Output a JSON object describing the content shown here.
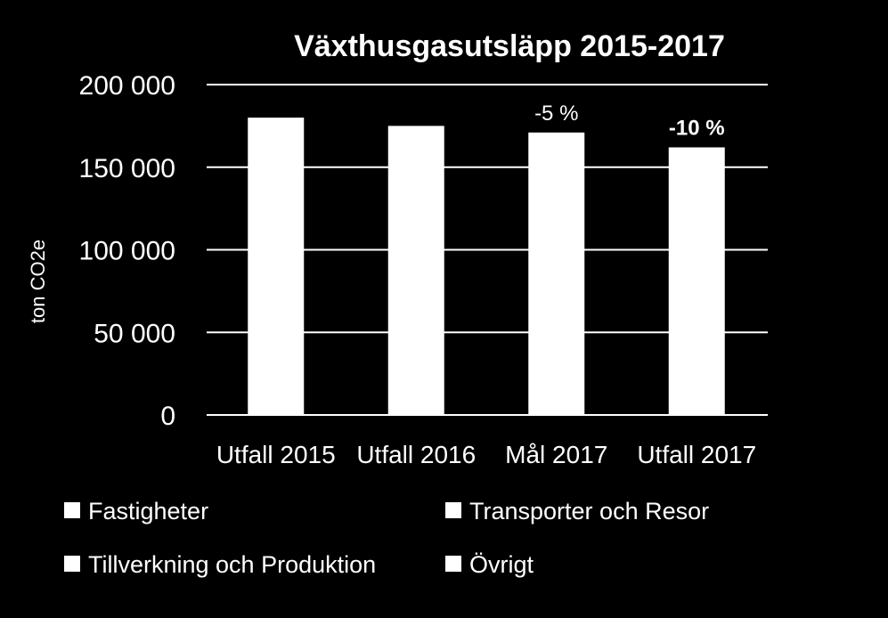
{
  "chart_data": {
    "type": "bar",
    "title": "Växthusgasutsläpp 2015-2017",
    "ylabel": "ton CO2e",
    "xlabel": "",
    "ylim": [
      0,
      200000
    ],
    "y_ticks": [
      0,
      50000,
      100000,
      150000,
      200000
    ],
    "y_tick_labels": [
      "0",
      "50 000",
      "100 000",
      "150 000",
      "200 000"
    ],
    "categories": [
      "Utfall 2015",
      "Utfall 2016",
      "Mål 2017",
      "Utfall 2017"
    ],
    "values": [
      180000,
      175000,
      171000,
      162000
    ],
    "data_labels": [
      {
        "index": 2,
        "text": "-5 %",
        "bold": false
      },
      {
        "index": 3,
        "text": "-10 %",
        "bold": true
      }
    ],
    "grid": true,
    "legend_position": "bottom",
    "legend": [
      "Fastigheter",
      "Transporter och Resor",
      "Tillverkning och Produktion",
      "Övrigt"
    ],
    "colors": {
      "background": "#000000",
      "bar": "#ffffff",
      "grid": "#ffffff",
      "text": "#ffffff"
    }
  }
}
